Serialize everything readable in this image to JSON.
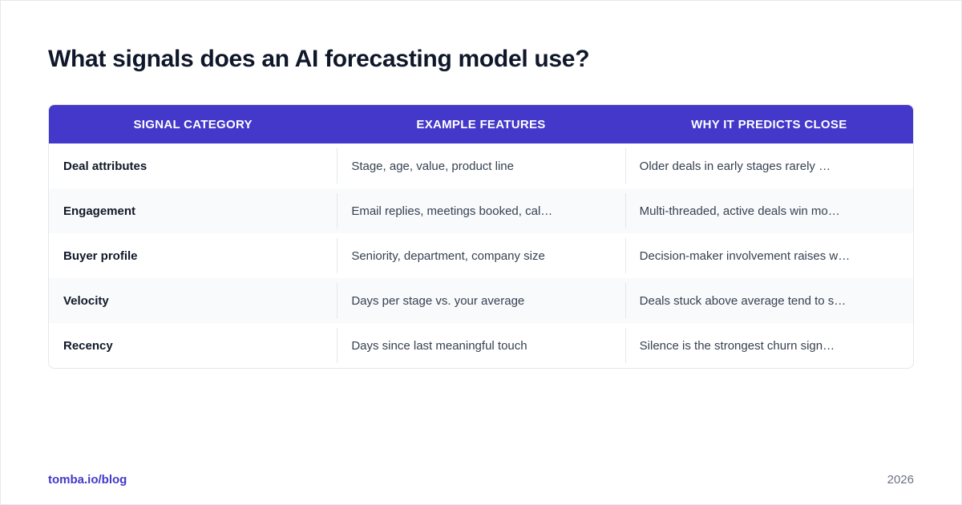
{
  "title": "What signals does an AI forecasting model use?",
  "table": {
    "headers": [
      "SIGNAL CATEGORY",
      "EXAMPLE FEATURES",
      "WHY IT PREDICTS CLOSE"
    ],
    "rows": [
      [
        "Deal attributes",
        "Stage, age, value, product line",
        "Older deals in early stages rarely …"
      ],
      [
        "Engagement",
        "Email replies, meetings booked, cal…",
        "Multi-threaded, active deals win mo…"
      ],
      [
        "Buyer profile",
        "Seniority, department, company size",
        "Decision-maker involvement raises w…"
      ],
      [
        "Velocity",
        "Days per stage vs. your average",
        "Deals stuck above average tend to s…"
      ],
      [
        "Recency",
        "Days since last meaningful touch",
        "Silence is the strongest churn sign…"
      ]
    ]
  },
  "footer": {
    "source": "tomba.io/blog",
    "year": "2026"
  },
  "colors": {
    "header_bg": "#4338ca",
    "accent": "#4338ca",
    "title": "#0f172a"
  }
}
